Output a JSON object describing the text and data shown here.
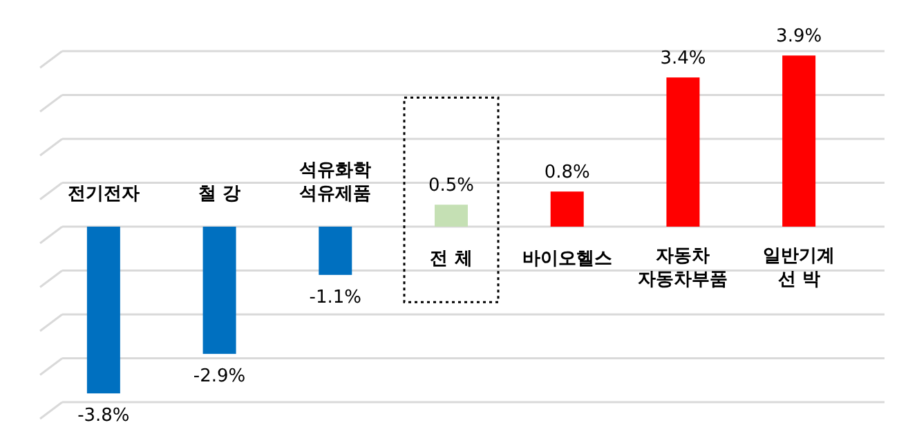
{
  "chart_data": {
    "type": "bar",
    "categories": [
      "전기전자",
      "철 강",
      "석유화학\n석유제품",
      "전 체",
      "바이오헬스",
      "자동차\n자동차부품",
      "일반기계\n선  박"
    ],
    "values": [
      -3.8,
      -2.9,
      -1.1,
      0.5,
      0.8,
      3.4,
      3.9
    ],
    "colors": [
      "#0070c0",
      "#0070c0",
      "#0070c0",
      "#c5e0b4",
      "#ff0000",
      "#ff0000",
      "#ff0000"
    ],
    "value_labels": [
      "-3.8%",
      "-2.9%",
      "-1.1%",
      "0.5%",
      "0.8%",
      "3.4%",
      "3.9%"
    ],
    "yticks": [
      {
        "value": -4,
        "label": null
      },
      {
        "value": -3,
        "label": null
      },
      {
        "value": -2,
        "label": null
      },
      {
        "value": -1,
        "label": null
      },
      {
        "value": 0,
        "label": null
      },
      {
        "value": 1,
        "label": null
      },
      {
        "value": 2,
        "label": null
      },
      {
        "value": 3,
        "label": null
      },
      {
        "value": 4,
        "label": null
      }
    ],
    "grid": "y"
  }
}
